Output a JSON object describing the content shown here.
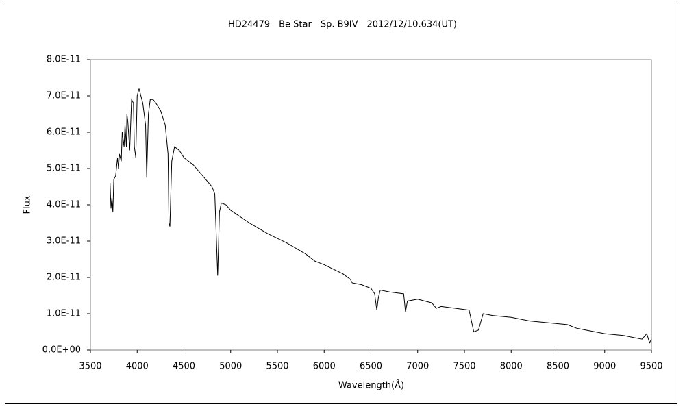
{
  "chart_data": {
    "type": "line",
    "title": "HD24479　Be Star　Sp. B9IV　2012/12/10.634(UT)",
    "x_label": "Wavelength(Å)",
    "y_label": "Flux",
    "xlim": [
      3500,
      9500
    ],
    "xticks": [
      3500,
      4000,
      4500,
      5000,
      5500,
      6000,
      6500,
      7000,
      7500,
      8000,
      8500,
      9000,
      9500
    ],
    "ylim": [
      0,
      8e-11
    ],
    "yticks": [
      {
        "value": 0,
        "label": "0.0E+00"
      },
      {
        "value": 1e-11,
        "label": "1.0E-11"
      },
      {
        "value": 2e-11,
        "label": "2.0E-11"
      },
      {
        "value": 3e-11,
        "label": "3.0E-11"
      },
      {
        "value": 4e-11,
        "label": "4.0E-11"
      },
      {
        "value": 5e-11,
        "label": "5.0E-11"
      },
      {
        "value": 6e-11,
        "label": "6.0E-11"
      },
      {
        "value": 7e-11,
        "label": "7.0E-11"
      },
      {
        "value": 8e-11,
        "label": "8.0E-11"
      }
    ],
    "series": [
      {
        "color": "#000000",
        "x": [
          3710,
          3720,
          3730,
          3740,
          3750,
          3770,
          3790,
          3800,
          3810,
          3830,
          3840,
          3860,
          3870,
          3885,
          3890,
          3900,
          3920,
          3940,
          3960,
          3970,
          3985,
          4000,
          4020,
          4040,
          4060,
          4090,
          4102,
          4120,
          4140,
          4170,
          4200,
          4250,
          4300,
          4330,
          4340,
          4350,
          4370,
          4400,
          4450,
          4500,
          4600,
          4700,
          4800,
          4830,
          4861,
          4880,
          4900,
          4950,
          5000,
          5200,
          5400,
          5600,
          5800,
          5900,
          6000,
          6200,
          6280,
          6300,
          6400,
          6500,
          6540,
          6563,
          6580,
          6600,
          6700,
          6850,
          6870,
          6890,
          7000,
          7150,
          7200,
          7250,
          7400,
          7550,
          7600,
          7650,
          7700,
          7800,
          8000,
          8200,
          8400,
          8600,
          8700,
          8800,
          9000,
          9200,
          9300,
          9400,
          9450,
          9480,
          9500
        ],
        "values": [
          4.6e-11,
          3.9e-11,
          4.2e-11,
          3.8e-11,
          4.7e-11,
          4.8e-11,
          5.3e-11,
          5e-11,
          5.4e-11,
          5.2e-11,
          6e-11,
          5.6e-11,
          6.2e-11,
          5.6e-11,
          6.5e-11,
          6.3e-11,
          5.5e-11,
          6.9e-11,
          6.8e-11,
          5.6e-11,
          5.3e-11,
          7e-11,
          7.2e-11,
          7e-11,
          6.8e-11,
          6.2e-11,
          4.75e-11,
          6.5e-11,
          6.9e-11,
          6.9e-11,
          6.8e-11,
          6.6e-11,
          6.2e-11,
          5.4e-11,
          3.5e-11,
          3.4e-11,
          5.2e-11,
          5.6e-11,
          5.5e-11,
          5.3e-11,
          5.1e-11,
          4.8e-11,
          4.5e-11,
          4.3e-11,
          2.05e-11,
          3.8e-11,
          4.05e-11,
          4e-11,
          3.85e-11,
          3.5e-11,
          3.2e-11,
          2.95e-11,
          2.65e-11,
          2.45e-11,
          2.35e-11,
          2.1e-11,
          1.95e-11,
          1.85e-11,
          1.8e-11,
          1.7e-11,
          1.55e-11,
          1.1e-11,
          1.45e-11,
          1.65e-11,
          1.6e-11,
          1.55e-11,
          1.05e-11,
          1.35e-11,
          1.4e-11,
          1.3e-11,
          1.15e-11,
          1.2e-11,
          1.15e-11,
          1.1e-11,
          5e-12,
          5.5e-12,
          1e-11,
          9.5e-12,
          9e-12,
          8e-12,
          7.5e-12,
          7e-12,
          6e-12,
          5.5e-12,
          4.5e-12,
          4e-12,
          3.5e-12,
          3e-12,
          4.5e-12,
          2e-12,
          3e-12
        ]
      }
    ]
  }
}
